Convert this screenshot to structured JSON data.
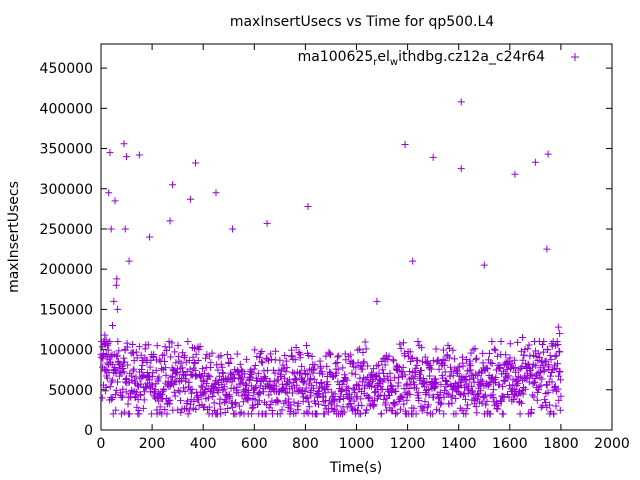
{
  "chart_data": {
    "type": "scatter",
    "title": "maxInsertUsecs vs Time for qp500.L4",
    "xlabel": "Time(s)",
    "ylabel": "maxInsertUsecs",
    "xlim": [
      0,
      2000
    ],
    "ylim": [
      0,
      480000
    ],
    "x_ticks": [
      0,
      200,
      400,
      600,
      800,
      1000,
      1200,
      1400,
      1600,
      1800,
      2000
    ],
    "y_ticks": [
      0,
      50000,
      100000,
      150000,
      200000,
      250000,
      300000,
      350000,
      400000,
      450000
    ],
    "x_tick_labels": [
      "0",
      "200",
      "400",
      "600",
      "800",
      "1000",
      "1200",
      "1400",
      "1600",
      "1800",
      "2000"
    ],
    "y_tick_labels": [
      "0",
      "50000",
      "100000",
      "150000",
      "200000",
      "250000",
      "300000",
      "350000",
      "400000",
      "450000"
    ],
    "grid": false,
    "legend_position": "top-right",
    "marker": "+",
    "series": [
      {
        "name": "ma100625_rel_withdbg.cz12a_c24r64",
        "color": "#9400d3",
        "band_summary": {
          "x_range": [
            0,
            1800
          ],
          "y_range": [
            20000,
            105000
          ],
          "typical": 58000
        },
        "outliers": [
          [
            5,
            40000
          ],
          [
            10,
            95000
          ],
          [
            12,
            108000
          ],
          [
            15,
            118000
          ],
          [
            20,
            112000
          ],
          [
            25,
            105000
          ],
          [
            30,
            295000
          ],
          [
            35,
            345000
          ],
          [
            40,
            250000
          ],
          [
            45,
            130000
          ],
          [
            50,
            160000
          ],
          [
            55,
            285000
          ],
          [
            60,
            180000
          ],
          [
            62,
            188000
          ],
          [
            65,
            150000
          ],
          [
            90,
            356000
          ],
          [
            95,
            250000
          ],
          [
            100,
            340000
          ],
          [
            110,
            210000
          ],
          [
            150,
            342000
          ],
          [
            190,
            240000
          ],
          [
            220,
            105000
          ],
          [
            270,
            260000
          ],
          [
            280,
            305000
          ],
          [
            350,
            287000
          ],
          [
            370,
            332000
          ],
          [
            450,
            295000
          ],
          [
            515,
            250000
          ],
          [
            650,
            257000
          ],
          [
            810,
            278000
          ],
          [
            1080,
            160000
          ],
          [
            1190,
            355000
          ],
          [
            1220,
            210000
          ],
          [
            1300,
            339000
          ],
          [
            1410,
            408000
          ],
          [
            1410,
            325000
          ],
          [
            1500,
            205000
          ],
          [
            1620,
            318000
          ],
          [
            1650,
            115000
          ],
          [
            1700,
            333000
          ],
          [
            1745,
            225000
          ],
          [
            1750,
            343000
          ],
          [
            1790,
            128000
          ],
          [
            1795,
            120000
          ]
        ]
      }
    ]
  }
}
